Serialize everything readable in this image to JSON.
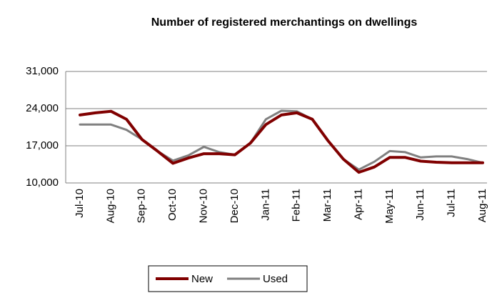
{
  "chart_data": {
    "type": "line",
    "title": "Number of registered merchantings on dwellings",
    "categories": [
      "Jul-10",
      null,
      "Aug-10",
      null,
      "Sep-10",
      null,
      "Oct-10",
      null,
      "Nov-10",
      null,
      "Dec-10",
      null,
      "Jan-11",
      null,
      "Feb-11",
      null,
      "Mar-11",
      null,
      "Apr-11",
      null,
      "May-11",
      null,
      "Jun-11",
      null,
      "Jul-11",
      null,
      "Aug-11"
    ],
    "series": [
      {
        "name": "New",
        "color": "#800000",
        "values": [
          22800,
          23200,
          23500,
          22000,
          18200,
          16000,
          13700,
          14700,
          15500,
          15500,
          15300,
          17500,
          21000,
          22800,
          23200,
          22000,
          18000,
          14500,
          12000,
          13000,
          14800,
          14800,
          14100,
          13900,
          13800,
          13800,
          13800
        ]
      },
      {
        "name": "Used",
        "color": "#808080",
        "values": [
          21000,
          21000,
          21000,
          20000,
          18200,
          16000,
          14200,
          15200,
          16800,
          15800,
          15300,
          17500,
          22000,
          23600,
          23500,
          22000,
          18000,
          14500,
          12500,
          14000,
          16000,
          15800,
          14800,
          15000,
          15000,
          14500,
          13800
        ]
      }
    ],
    "ylim": [
      10000,
      31000
    ],
    "yticks": [
      {
        "value": 10000,
        "label": "10,000"
      },
      {
        "value": 17000,
        "label": "17,000"
      },
      {
        "value": 24000,
        "label": "24,000"
      },
      {
        "value": 31000,
        "label": "31,000"
      }
    ],
    "grid": true
  }
}
